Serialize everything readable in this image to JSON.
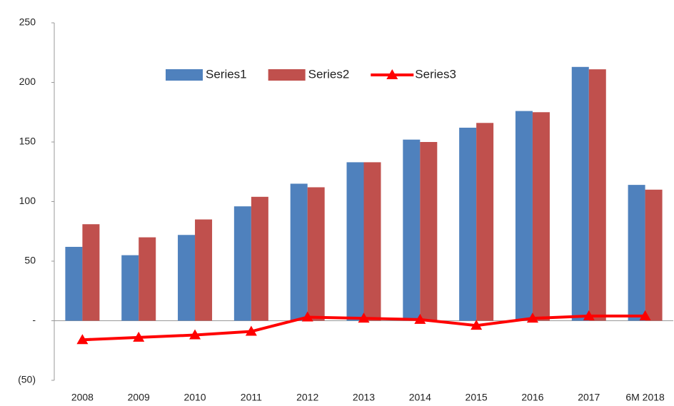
{
  "chart_data": {
    "type": "bar-line",
    "categories": [
      "2008",
      "2009",
      "2010",
      "2011",
      "2012",
      "2013",
      "2014",
      "2015",
      "2016",
      "2017",
      "6M 2018"
    ],
    "series": [
      {
        "name": "Series1",
        "type": "bar",
        "color": "#4f81bd",
        "values": [
          62,
          55,
          72,
          96,
          115,
          133,
          152,
          162,
          176,
          213,
          114
        ]
      },
      {
        "name": "Series2",
        "type": "bar",
        "color": "#c0504d",
        "values": [
          81,
          70,
          85,
          104,
          112,
          133,
          150,
          166,
          175,
          211,
          110
        ]
      },
      {
        "name": "Series3",
        "type": "line",
        "color": "#ff0000",
        "values": [
          -16,
          -14,
          -12,
          -9,
          3,
          2,
          1,
          -4,
          2,
          4,
          4
        ]
      }
    ],
    "ylim": [
      -50,
      250
    ],
    "yticks": [
      {
        "value": -50,
        "label": "(50)"
      },
      {
        "value": 0,
        "label": "-"
      },
      50,
      100,
      150,
      200,
      250
    ],
    "legend": "top",
    "grid": false
  }
}
